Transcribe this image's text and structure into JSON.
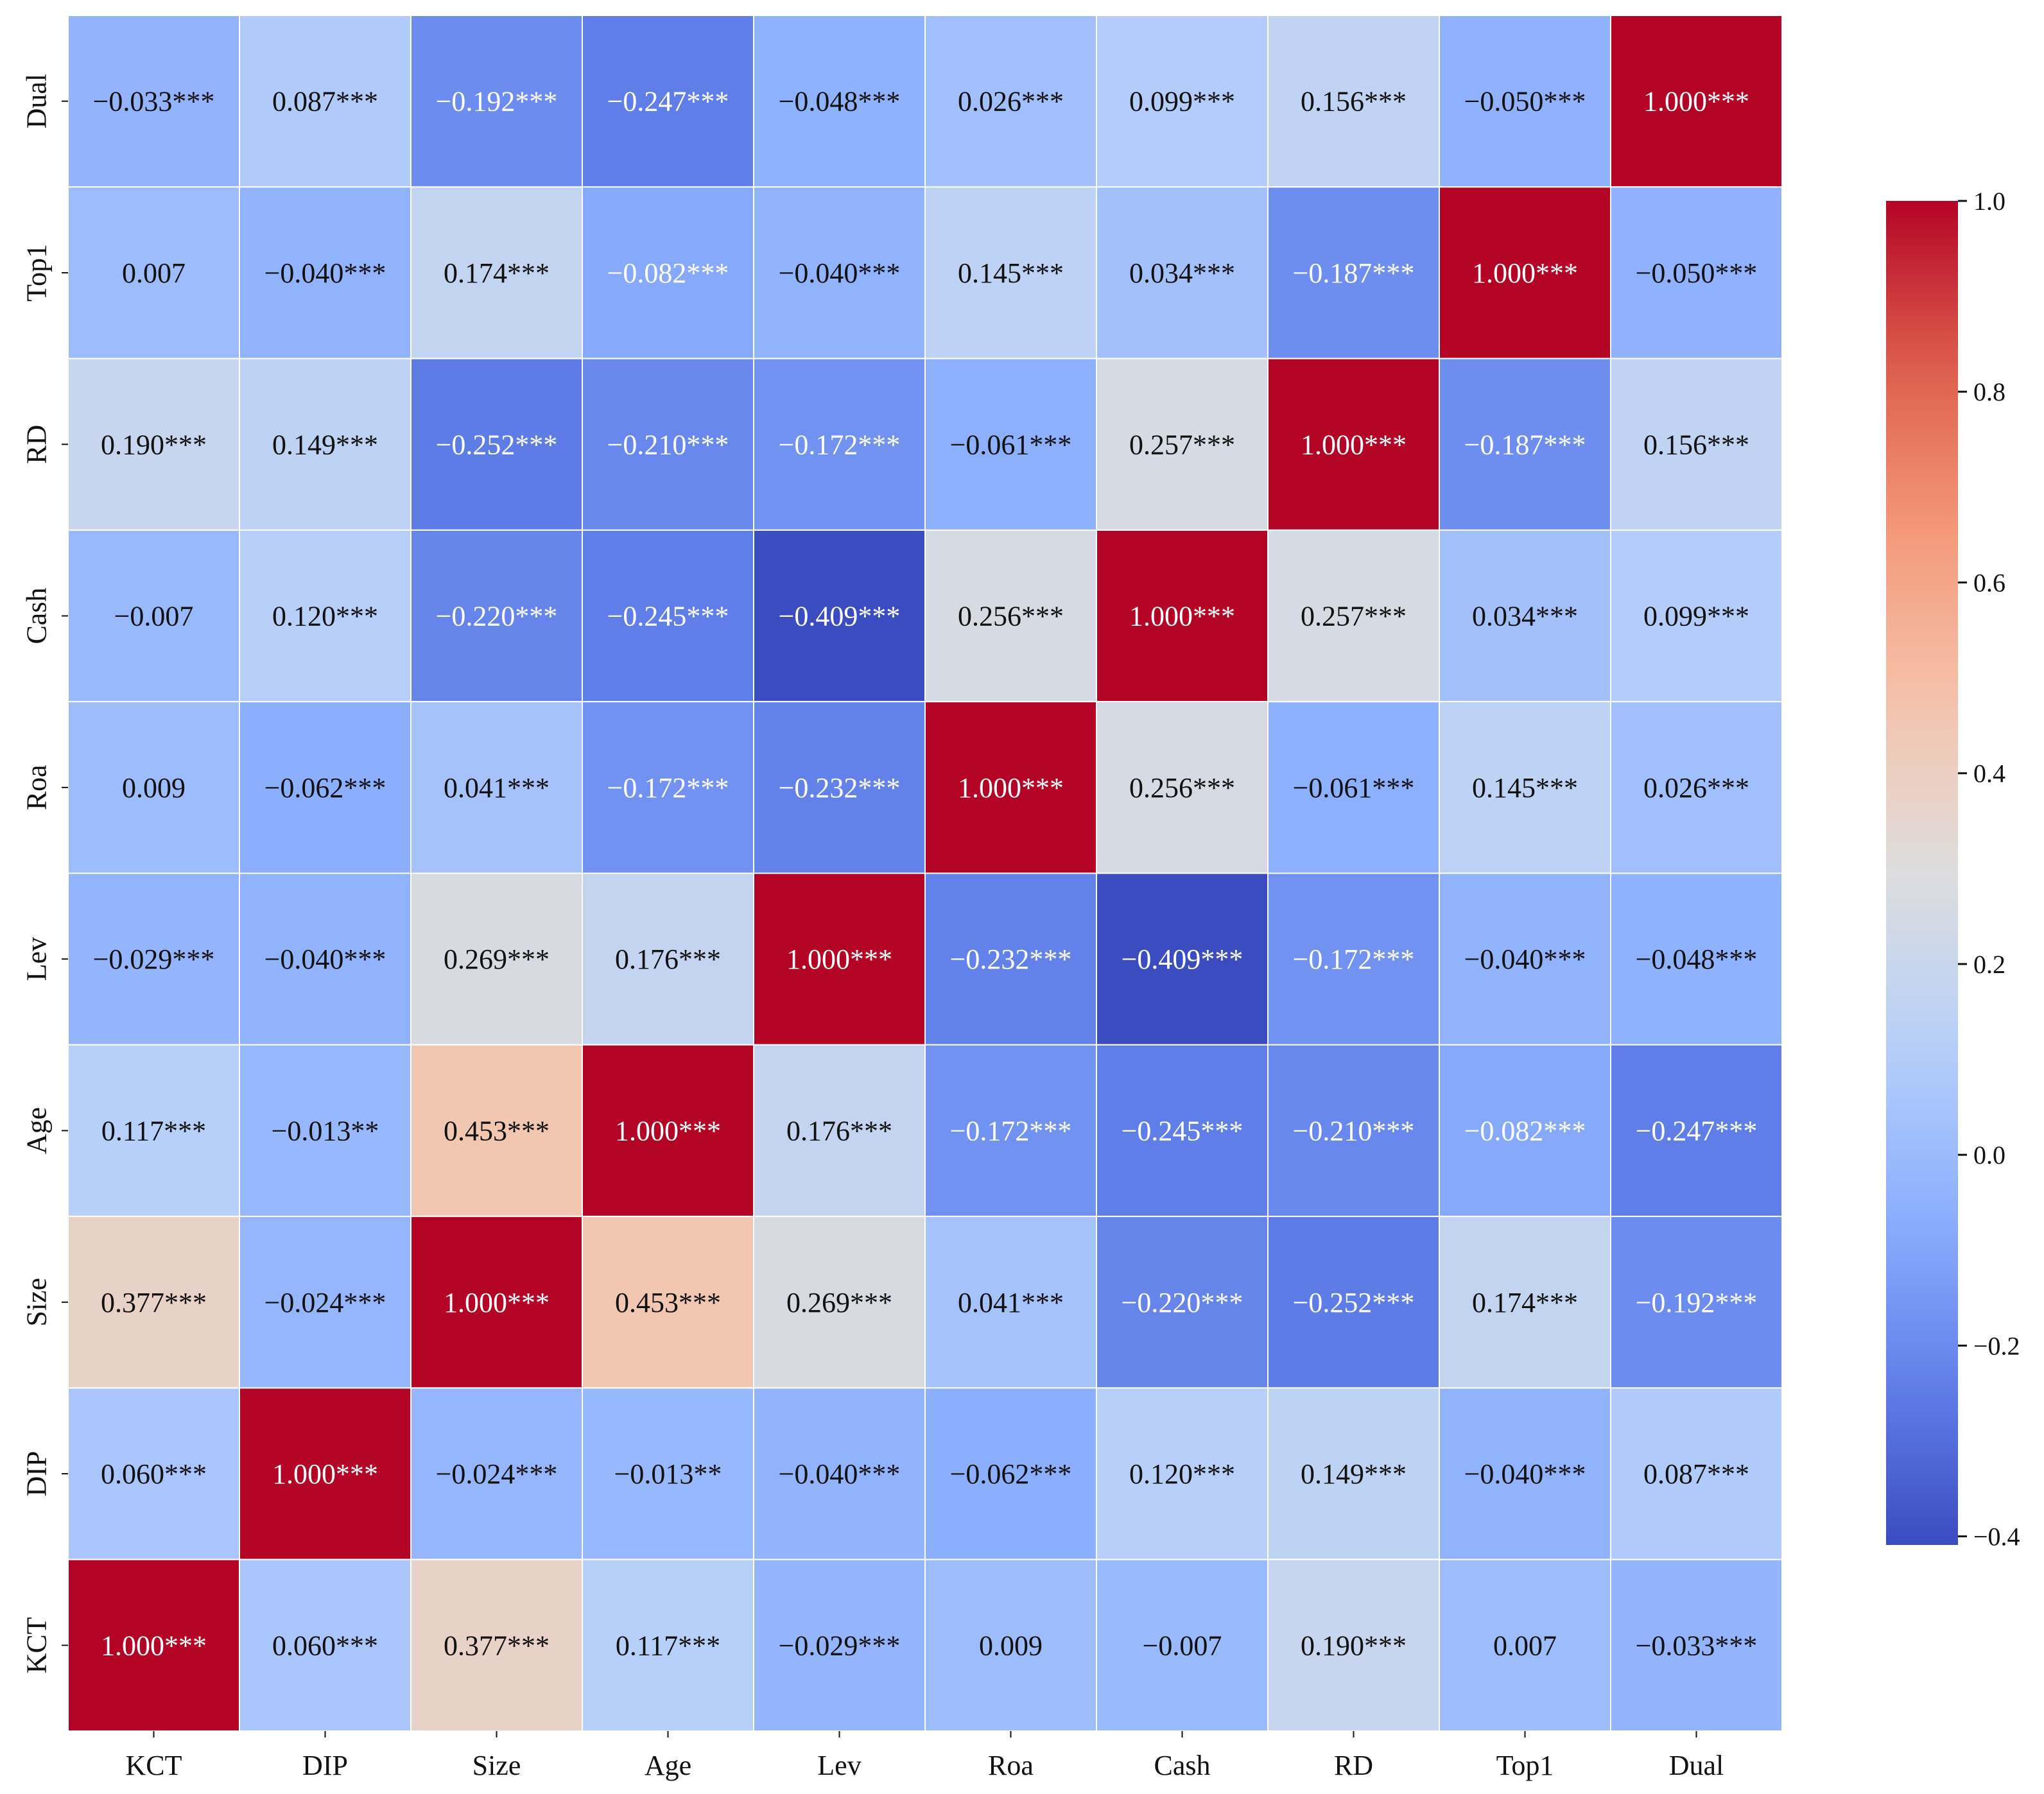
{
  "chart_data": {
    "type": "heatmap",
    "title": "",
    "xlabel": "",
    "ylabel": "",
    "x_categories": [
      "KCT",
      "DIP",
      "Size",
      "Age",
      "Lev",
      "Roa",
      "Cash",
      "RD",
      "Top1",
      "Dual"
    ],
    "y_categories_top_to_bottom": [
      "Dual",
      "Top1",
      "RD",
      "Cash",
      "Roa",
      "Lev",
      "Age",
      "Size",
      "DIP",
      "KCT"
    ],
    "values": [
      [
        -0.033,
        0.087,
        -0.192,
        -0.247,
        -0.048,
        0.026,
        0.099,
        0.156,
        -0.05,
        1.0
      ],
      [
        0.007,
        -0.04,
        0.174,
        -0.082,
        -0.04,
        0.145,
        0.034,
        -0.187,
        1.0,
        -0.05
      ],
      [
        0.19,
        0.149,
        -0.252,
        -0.21,
        -0.172,
        -0.061,
        0.257,
        1.0,
        -0.187,
        0.156
      ],
      [
        -0.007,
        0.12,
        -0.22,
        -0.245,
        -0.409,
        0.256,
        1.0,
        0.257,
        0.034,
        0.099
      ],
      [
        0.009,
        -0.062,
        0.041,
        -0.172,
        -0.232,
        1.0,
        0.256,
        -0.061,
        0.145,
        0.026
      ],
      [
        -0.029,
        -0.04,
        0.269,
        0.176,
        1.0,
        -0.232,
        -0.409,
        -0.172,
        -0.04,
        -0.048
      ],
      [
        0.117,
        -0.013,
        0.453,
        1.0,
        0.176,
        -0.172,
        -0.245,
        -0.21,
        -0.082,
        -0.247
      ],
      [
        0.377,
        -0.024,
        1.0,
        0.453,
        0.269,
        0.041,
        -0.22,
        -0.252,
        0.174,
        -0.192
      ],
      [
        0.06,
        1.0,
        -0.024,
        -0.013,
        -0.04,
        -0.062,
        0.12,
        0.149,
        -0.04,
        0.087
      ],
      [
        1.0,
        0.06,
        0.377,
        0.117,
        -0.029,
        0.009,
        -0.007,
        0.19,
        0.007,
        -0.033
      ]
    ],
    "cell_labels": [
      [
        "−0.033***",
        "0.087***",
        "−0.192***",
        "−0.247***",
        "−0.048***",
        "0.026***",
        "0.099***",
        "0.156***",
        "−0.050***",
        "1.000***"
      ],
      [
        "0.007",
        "−0.040***",
        "0.174***",
        "−0.082***",
        "−0.040***",
        "0.145***",
        "0.034***",
        "−0.187***",
        "1.000***",
        "−0.050***"
      ],
      [
        "0.190***",
        "0.149***",
        "−0.252***",
        "−0.210***",
        "−0.172***",
        "−0.061***",
        "0.257***",
        "1.000***",
        "−0.187***",
        "0.156***"
      ],
      [
        "−0.007",
        "0.120***",
        "−0.220***",
        "−0.245***",
        "−0.409***",
        "0.256***",
        "1.000***",
        "0.257***",
        "0.034***",
        "0.099***"
      ],
      [
        "0.009",
        "−0.062***",
        "0.041***",
        "−0.172***",
        "−0.232***",
        "1.000***",
        "0.256***",
        "−0.061***",
        "0.145***",
        "0.026***"
      ],
      [
        "−0.029***",
        "−0.040***",
        "0.269***",
        "0.176***",
        "1.000***",
        "−0.232***",
        "−0.409***",
        "−0.172***",
        "−0.040***",
        "−0.048***"
      ],
      [
        "0.117***",
        "−0.013**",
        "0.453***",
        "1.000***",
        "0.176***",
        "−0.172***",
        "−0.245***",
        "−0.210***",
        "−0.082***",
        "−0.247***"
      ],
      [
        "0.377***",
        "−0.024***",
        "1.000***",
        "0.453***",
        "0.269***",
        "0.041***",
        "−0.220***",
        "−0.252***",
        "0.174***",
        "−0.192***"
      ],
      [
        "0.060***",
        "1.000***",
        "−0.024***",
        "−0.013**",
        "−0.040***",
        "−0.062***",
        "0.120***",
        "0.149***",
        "−0.040***",
        "0.087***"
      ],
      [
        "1.000***",
        "0.060***",
        "0.377***",
        "0.117***",
        "−0.029***",
        "0.009",
        "−0.007",
        "0.190***",
        "0.007",
        "−0.033***"
      ]
    ],
    "colormap": "coolwarm",
    "vmin": -0.409,
    "vmax": 1.0,
    "colorbar": {
      "ticks": [
        1.0,
        0.8,
        0.6,
        0.4,
        0.2,
        0.0,
        -0.2,
        -0.4
      ],
      "tick_labels": [
        "1.0",
        "0.8",
        "0.6",
        "0.4",
        "0.2",
        "0.0",
        "−0.2",
        "−0.4"
      ],
      "placement": "right"
    },
    "colors": {
      "low": "#3b4cc0",
      "mid": "#dddddd",
      "high": "#b40426",
      "dark_text": "#111111",
      "light_text": "#ffffff",
      "grid_line": "#ffffff"
    }
  }
}
